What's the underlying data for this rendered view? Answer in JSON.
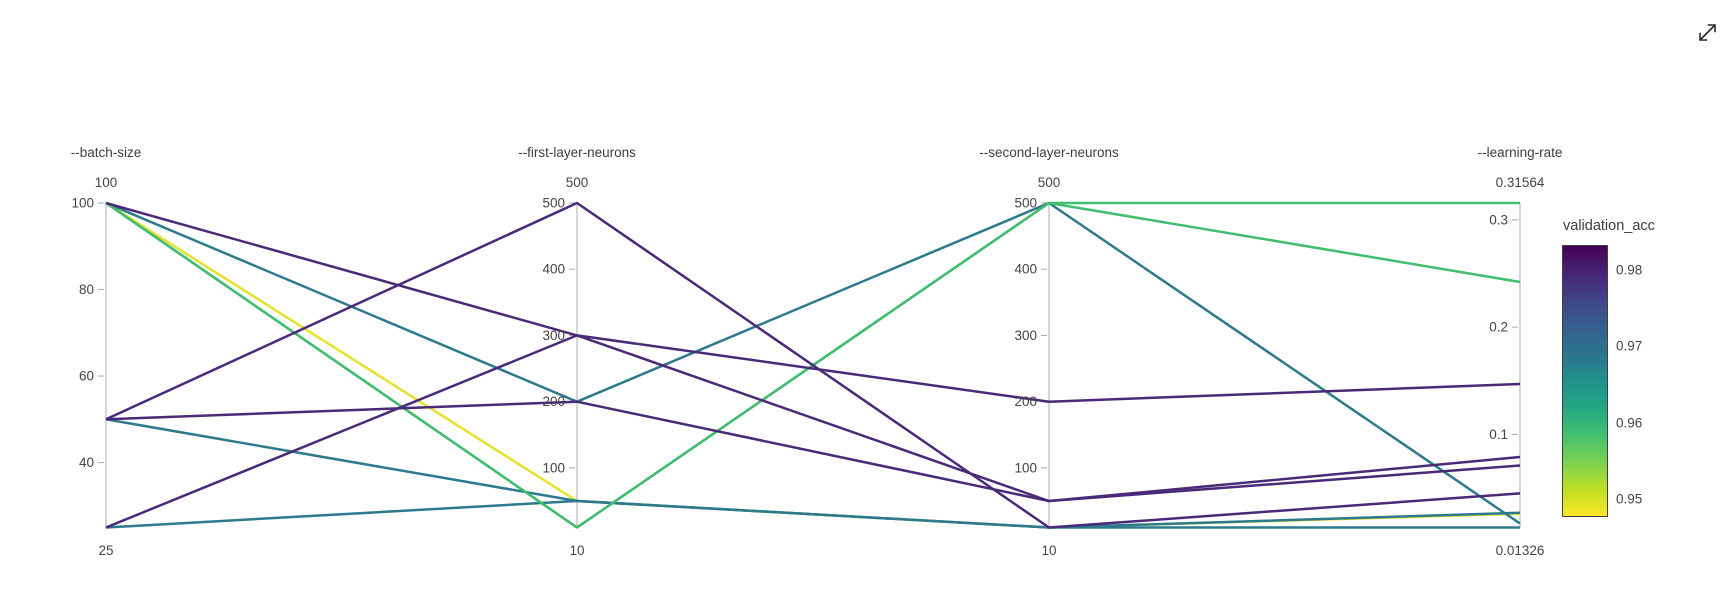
{
  "chart_data": {
    "type": "parallel-coordinates",
    "axes": [
      {
        "key": "batch_size",
        "title": "--batch-size",
        "max_label": "100",
        "min_label": "25",
        "min": 25,
        "max": 100,
        "ticks": [
          {
            "value": 40,
            "label": "40"
          },
          {
            "value": 60,
            "label": "60"
          },
          {
            "value": 80,
            "label": "80"
          },
          {
            "value": 100,
            "label": "100"
          }
        ]
      },
      {
        "key": "first_layer_neurons",
        "title": "--first-layer-neurons",
        "max_label": "500",
        "min_label": "10",
        "min": 10,
        "max": 500,
        "ticks": [
          {
            "value": 100,
            "label": "100"
          },
          {
            "value": 200,
            "label": "200"
          },
          {
            "value": 300,
            "label": "300"
          },
          {
            "value": 400,
            "label": "400"
          },
          {
            "value": 500,
            "label": "500"
          }
        ]
      },
      {
        "key": "second_layer_neurons",
        "title": "--second-layer-neurons",
        "max_label": "500",
        "min_label": "10",
        "min": 10,
        "max": 500,
        "ticks": [
          {
            "value": 100,
            "label": "100"
          },
          {
            "value": 200,
            "label": "200"
          },
          {
            "value": 300,
            "label": "300"
          },
          {
            "value": 400,
            "label": "400"
          },
          {
            "value": 500,
            "label": "500"
          }
        ]
      },
      {
        "key": "learning_rate",
        "title": "--learning-rate",
        "max_label": "0.31564",
        "min_label": "0.01326",
        "min": 0.01326,
        "max": 0.31564,
        "ticks": [
          {
            "value": 0.1,
            "label": "0.1"
          },
          {
            "value": 0.2,
            "label": "0.2"
          },
          {
            "value": 0.3,
            "label": "0.3"
          }
        ]
      }
    ],
    "runs": [
      {
        "batch_size": 100,
        "first_layer_neurons": 50,
        "second_layer_neurons": 10,
        "learning_rate": 0.026,
        "validation_acc": 0.948,
        "color": "#e4e22d"
      },
      {
        "batch_size": 50,
        "first_layer_neurons": 50,
        "second_layer_neurons": 10,
        "learning_rate": 0.01326,
        "validation_acc": 0.97,
        "color": "#2d798d"
      },
      {
        "batch_size": 25,
        "first_layer_neurons": 50,
        "second_layer_neurons": 10,
        "learning_rate": 0.027,
        "validation_acc": 0.968,
        "color": "#2d798d"
      },
      {
        "batch_size": 100,
        "first_layer_neurons": 200,
        "second_layer_neurons": 500,
        "learning_rate": 0.017,
        "validation_acc": 0.969,
        "color": "#2d798d"
      },
      {
        "batch_size": 100,
        "first_layer_neurons": 10,
        "second_layer_neurons": 500,
        "learning_rate": 0.31564,
        "validation_acc": 0.958,
        "color": "#41bd72"
      },
      {
        "batch_size": 100,
        "first_layer_neurons": 10,
        "second_layer_neurons": 500,
        "learning_rate": 0.242,
        "validation_acc": 0.958,
        "color": "#41bd72"
      },
      {
        "batch_size": 100,
        "first_layer_neurons": 300,
        "second_layer_neurons": 200,
        "learning_rate": 0.147,
        "validation_acc": 0.98,
        "color": "#4a2a78"
      },
      {
        "batch_size": 50,
        "first_layer_neurons": 500,
        "second_layer_neurons": 10,
        "learning_rate": 0.045,
        "validation_acc": 0.981,
        "color": "#4a2a78"
      },
      {
        "batch_size": 25,
        "first_layer_neurons": 300,
        "second_layer_neurons": 50,
        "learning_rate": 0.079,
        "validation_acc": 0.98,
        "color": "#4a2a78"
      },
      {
        "batch_size": 50,
        "first_layer_neurons": 200,
        "second_layer_neurons": 50,
        "learning_rate": 0.071,
        "validation_acc": 0.979,
        "color": "#4a2a78"
      }
    ],
    "colorbar": {
      "title": "validation_acc",
      "range": [
        0.9476,
        0.9833
      ],
      "ticks": [
        {
          "value": 0.98,
          "label": "0.98"
        },
        {
          "value": 0.97,
          "label": "0.97"
        },
        {
          "value": 0.96,
          "label": "0.96"
        },
        {
          "value": 0.95,
          "label": "0.95"
        }
      ],
      "gradient": [
        "#440154",
        "#482475",
        "#414487",
        "#355f8d",
        "#2b748e",
        "#21918c",
        "#22a884",
        "#44bf70",
        "#7ad151",
        "#bddf26",
        "#fde725"
      ]
    }
  }
}
